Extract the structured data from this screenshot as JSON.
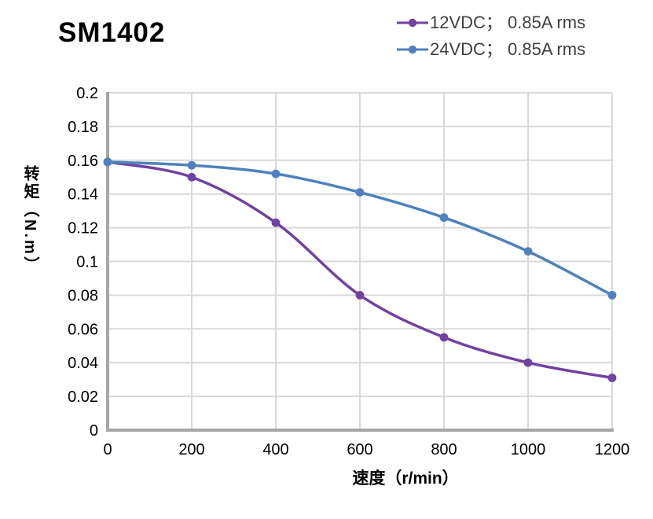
{
  "chart_data": {
    "type": "line",
    "title": "SM1402",
    "xlabel": "速度（r/min）",
    "ylabel": "转矩（N.m）",
    "xlim": [
      0,
      1200
    ],
    "ylim": [
      0,
      0.2
    ],
    "xticks": [
      0,
      200,
      400,
      600,
      800,
      1000,
      1200
    ],
    "xtick_labels": [
      "0",
      "200",
      "400",
      "600",
      "800",
      "1000",
      "1200"
    ],
    "yticks": [
      0,
      0.02,
      0.04,
      0.06,
      0.08,
      0.1,
      0.12,
      0.14,
      0.16,
      0.18,
      0.2
    ],
    "ytick_labels": [
      "0",
      "0.02",
      "0.04",
      "0.06",
      "0.08",
      "0.1",
      "0.12",
      "0.14",
      "0.16",
      "0.18",
      "0.2"
    ],
    "grid": true,
    "legend_position": "top-right",
    "x": [
      0,
      200,
      400,
      600,
      800,
      1000,
      1200
    ],
    "series": [
      {
        "name": "12VDC； 0.85A rms",
        "color": "#7141A1",
        "marker": "circle",
        "values": [
          0.159,
          0.15,
          0.123,
          0.08,
          0.055,
          0.04,
          0.031
        ]
      },
      {
        "name": "24VDC； 0.85A rms",
        "color": "#4E81BD",
        "marker": "circle",
        "values": [
          0.159,
          0.157,
          0.152,
          0.141,
          0.126,
          0.106,
          0.08
        ]
      }
    ],
    "colors": {
      "gridline": "#D9D9D9",
      "axis": "#A6A6A6",
      "tick_label": "#000000",
      "legend_text": "#3F3F3F",
      "title": "#000000"
    }
  }
}
